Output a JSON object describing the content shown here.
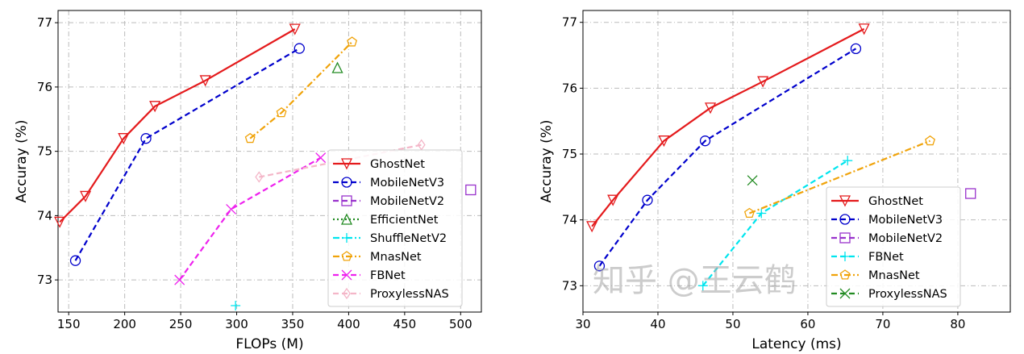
{
  "chart_data": [
    {
      "type": "line",
      "xlabel": "FLOPs (M)",
      "ylabel": "Accuray (%)",
      "xlim": [
        140.5,
        518.5
      ],
      "ylim": [
        72.5,
        77.19
      ],
      "xticks": [
        150,
        200,
        250,
        300,
        350,
        400,
        450,
        500
      ],
      "yticks": [
        73,
        74,
        75,
        76,
        77
      ],
      "grid": true,
      "legend": "lower-right",
      "series": [
        {
          "name": "GhostNet",
          "color": "#e41a1c",
          "marker": "triangle-down",
          "style": "solid",
          "points": [
            [
              142,
              73.9
            ],
            [
              165,
              74.3
            ],
            [
              199,
              75.2
            ],
            [
              227,
              75.7
            ],
            [
              272,
              76.1
            ],
            [
              352,
              76.9
            ]
          ]
        },
        {
          "name": "MobileNetV3",
          "color": "#0000cc",
          "marker": "circle",
          "style": "dashed",
          "points": [
            [
              156,
              73.3
            ],
            [
              219,
              75.2
            ],
            [
              356,
              76.6
            ]
          ]
        },
        {
          "name": "MobileNetV2",
          "color": "#9932cc",
          "marker": "square",
          "style": "dashed",
          "points": [
            [
              509,
              74.4
            ]
          ]
        },
        {
          "name": "EfficientNet",
          "color": "#228b22",
          "marker": "triangle-up",
          "style": "dotted",
          "points": [
            [
              390,
              76.3
            ]
          ]
        },
        {
          "name": "ShuffleNetV2",
          "color": "#00e5ee",
          "marker": "plus",
          "style": "dashdot",
          "points": [
            [
              299,
              72.6
            ]
          ]
        },
        {
          "name": "MnasNet",
          "color": "#f0a30a",
          "marker": "pentagon",
          "style": "dashdot",
          "points": [
            [
              312,
              75.2
            ],
            [
              340,
              75.6
            ],
            [
              403,
              76.7
            ]
          ]
        },
        {
          "name": "FBNet",
          "color": "#ee22ee",
          "marker": "x",
          "style": "dashed",
          "points": [
            [
              249,
              73.0
            ],
            [
              295,
              74.1
            ],
            [
              375,
              74.9
            ]
          ]
        },
        {
          "name": "ProxylessNAS",
          "color": "#f4b6c8",
          "marker": "diamond",
          "style": "dashed",
          "points": [
            [
              320,
              74.6
            ],
            [
              465,
              75.1
            ]
          ]
        }
      ]
    },
    {
      "type": "line",
      "xlabel": "Latency (ms)",
      "ylabel": "Accuray (%)",
      "xlim": [
        30,
        87
      ],
      "ylim": [
        72.6,
        77.18
      ],
      "xticks": [
        30,
        40,
        50,
        60,
        70,
        80
      ],
      "yticks": [
        73,
        74,
        75,
        76,
        77
      ],
      "grid": true,
      "legend": "lower-right",
      "series": [
        {
          "name": "GhostNet",
          "color": "#e41a1c",
          "marker": "triangle-down",
          "style": "solid",
          "points": [
            [
              31.2,
              73.9
            ],
            [
              34,
              74.3
            ],
            [
              40.8,
              75.2
            ],
            [
              47,
              75.7
            ],
            [
              54,
              76.1
            ],
            [
              67.5,
              76.9
            ]
          ]
        },
        {
          "name": "MobileNetV3",
          "color": "#0000cc",
          "marker": "circle",
          "style": "dashed",
          "points": [
            [
              32.2,
              73.3
            ],
            [
              38.6,
              74.3
            ],
            [
              46.3,
              75.2
            ],
            [
              66.4,
              76.6
            ]
          ]
        },
        {
          "name": "MobileNetV2",
          "color": "#9932cc",
          "marker": "square",
          "style": "dashed",
          "points": [
            [
              81.7,
              74.4
            ]
          ]
        },
        {
          "name": "FBNet",
          "color": "#00e5ee",
          "marker": "plus",
          "style": "dashed",
          "points": [
            [
              46,
              73.0
            ],
            [
              53.8,
              74.1
            ],
            [
              65.3,
              74.9
            ]
          ]
        },
        {
          "name": "MnasNet",
          "color": "#f0a30a",
          "marker": "pentagon",
          "style": "dashdot",
          "points": [
            [
              52.2,
              74.1
            ],
            [
              76.3,
              75.2
            ]
          ]
        },
        {
          "name": "ProxylessNAS",
          "color": "#228b22",
          "marker": "x",
          "style": "dashed",
          "points": [
            [
              52.6,
              74.6
            ]
          ]
        }
      ]
    }
  ],
  "watermark": "知乎 @王云鹤"
}
